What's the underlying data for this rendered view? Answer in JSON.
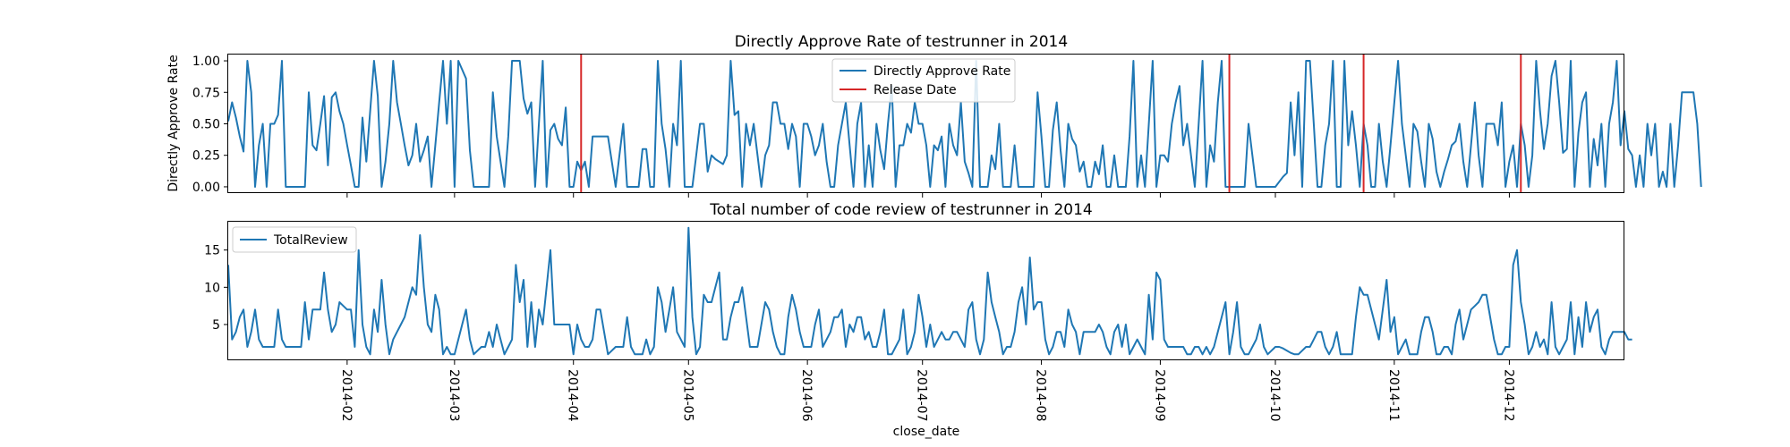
{
  "chart_data": [
    {
      "type": "line",
      "title": "Directly Approve Rate of testrunner in 2014",
      "xlabel": "",
      "ylabel": "Directly Approve Rate",
      "x_range": [
        "2014-01-01",
        "2014-12-31"
      ],
      "ylim": [
        -0.05,
        1.05
      ],
      "yticks": [
        0.0,
        0.25,
        0.5,
        0.75,
        1.0
      ],
      "ytick_labels": [
        "0.00",
        "0.25",
        "0.50",
        "0.75",
        "1.00"
      ],
      "grid": false,
      "legend_position": "top-center",
      "colors": {
        "series": "#1f77b4",
        "release": "#d62728"
      },
      "legend": [
        "Directly Approve Rate",
        "Release Date"
      ],
      "release_dates": [
        "2014-04-03",
        "2014-09-19",
        "2014-10-24",
        "2014-12-04"
      ],
      "series": [
        {
          "name": "Directly Approve Rate",
          "x_start": "2014-01-01",
          "x_step_days": 1,
          "values": [
            0.52,
            0.67,
            0.55,
            0.4,
            0.28,
            1.0,
            0.75,
            0.0,
            0.33,
            0.5,
            0.0,
            0.5,
            0.5,
            0.57,
            1.0,
            0.0,
            0.0,
            0.0,
            0.0,
            0.0,
            0.0,
            0.75,
            0.33,
            0.29,
            0.5,
            0.72,
            0.17,
            0.71,
            0.75,
            0.6,
            0.5,
            0.33,
            0.17,
            0.0,
            0.0,
            0.55,
            0.2,
            0.6,
            1.0,
            0.72,
            0.0,
            0.2,
            0.5,
            1.0,
            0.67,
            0.5,
            0.33,
            0.17,
            0.25,
            0.5,
            0.2,
            0.29,
            0.4,
            0.0,
            0.33,
            0.67,
            1.0,
            0.5,
            1.0,
            0.0,
            1.0,
            0.93,
            0.86,
            0.29,
            0.0,
            0.0,
            0.0,
            0.0,
            0.0,
            0.75,
            0.4,
            0.2,
            0.0,
            0.4,
            1.0,
            1.0,
            1.0,
            0.7,
            0.58,
            0.67,
            0.0,
            0.5,
            1.0,
            0.0,
            0.45,
            0.5,
            0.38,
            0.33,
            0.63,
            0.0,
            0.0,
            0.2,
            0.13,
            0.2,
            0.0,
            0.4,
            0.4,
            0.4,
            0.4,
            0.4,
            0.2,
            0.0,
            0.25,
            0.5,
            0.0,
            0.0,
            0.0,
            0.0,
            0.3,
            0.3,
            0.0,
            0.0,
            1.0,
            0.5,
            0.3,
            0.0,
            0.5,
            0.33,
            1.0,
            0.0,
            0.0,
            0.0,
            0.25,
            0.5,
            0.5,
            0.12,
            0.25,
            0.22,
            0.2,
            0.18,
            0.25,
            1.0,
            0.57,
            0.6,
            0.0,
            0.5,
            0.33,
            0.5,
            0.25,
            0.0,
            0.25,
            0.33,
            0.67,
            0.67,
            0.5,
            0.5,
            0.3,
            0.5,
            0.4,
            0.0,
            0.5,
            0.5,
            0.4,
            0.25,
            0.33,
            0.5,
            0.2,
            0.0,
            0.0,
            0.33,
            0.5,
            0.67,
            0.33,
            0.0,
            0.5,
            0.67,
            0.0,
            0.33,
            0.0,
            0.5,
            0.29,
            0.14,
            0.5,
            0.8,
            0.0,
            0.33,
            0.33,
            0.5,
            0.43,
            0.67,
            0.5,
            0.5,
            0.33,
            0.0,
            0.33,
            0.29,
            0.4,
            0.0,
            0.5,
            0.33,
            0.25,
            0.67,
            0.2,
            0.11,
            0.0,
            1.0,
            0.0,
            0.0,
            0.0,
            0.25,
            0.14,
            0.5,
            0.0,
            0.0,
            0.0,
            0.33,
            0.0,
            0.0,
            0.0,
            0.0,
            0.0,
            0.75,
            0.4,
            0.0,
            0.0,
            0.45,
            0.67,
            0.29,
            0.0,
            0.5,
            0.38,
            0.33,
            0.12,
            0.2,
            0.0,
            0.0,
            0.2,
            0.1,
            0.33,
            0.0,
            0.0,
            0.25,
            0.0,
            0.0,
            0.0,
            0.4,
            1.0,
            0.0,
            0.25,
            0.0,
            0.5,
            1.0,
            0.0,
            0.25,
            0.25,
            0.2,
            0.5,
            0.67,
            0.8,
            0.33,
            0.5,
            0.25,
            0.0,
            0.5,
            1.0,
            0.0,
            0.33,
            0.2,
            0.67,
            1.0,
            0.0,
            0.0,
            0.0,
            0.0,
            0.0,
            0.0,
            0.5,
            0.25,
            0.0,
            0.0,
            0.0,
            0.0,
            0.0,
            0.0,
            0.04,
            0.08,
            0.11,
            0.67,
            0.25,
            0.75,
            0.0,
            1.0,
            1.0,
            0.5,
            0.0,
            0.0,
            0.33,
            0.5,
            1.0,
            0.0,
            0.0,
            1.0,
            0.33,
            0.6,
            0.33,
            0.0,
            0.5,
            0.33,
            0.0,
            0.0,
            0.5,
            0.2,
            0.0,
            0.33,
            0.67,
            1.0,
            0.5,
            0.25,
            0.0,
            0.5,
            0.44,
            0.2,
            0.0,
            0.5,
            0.38,
            0.12,
            0.0,
            0.12,
            0.22,
            0.33,
            0.36,
            0.5,
            0.2,
            0.0,
            0.33,
            0.67,
            0.25,
            0.0,
            0.5,
            0.5,
            0.5,
            0.33,
            0.67,
            0.0,
            0.2,
            0.33,
            0.0,
            0.5,
            0.33,
            0.0,
            0.25,
            1.0,
            0.6,
            0.3,
            0.5,
            0.88,
            1.0,
            0.67,
            0.27,
            0.3,
            1.0,
            0.0,
            0.43,
            0.67,
            0.75,
            0.0,
            0.38,
            0.17,
            0.5,
            0.0,
            0.5,
            0.67,
            1.0,
            0.33,
            0.6,
            0.3,
            0.25,
            0.0,
            0.25,
            0.0,
            0.5,
            0.25,
            0.5,
            0.0,
            0.12,
            0.0,
            0.5,
            0.0,
            0.33,
            0.75,
            0.75,
            0.75,
            0.75,
            0.5,
            0.0
          ]
        }
      ]
    },
    {
      "type": "line",
      "title": "Total number of code review of testrunner in 2014",
      "xlabel": "close_date",
      "ylabel": "",
      "x_range": [
        "2014-01-01",
        "2014-12-31"
      ],
      "ylim": [
        0.2,
        18.8
      ],
      "yticks": [
        5,
        10,
        15
      ],
      "ytick_labels": [
        "5",
        "10",
        "15"
      ],
      "xtick_labels": [
        "2014-02",
        "2014-03",
        "2014-04",
        "2014-05",
        "2014-06",
        "2014-07",
        "2014-08",
        "2014-09",
        "2014-10",
        "2014-11",
        "2014-12"
      ],
      "xtick_dates": [
        "2014-02-01",
        "2014-03-01",
        "2014-04-01",
        "2014-05-01",
        "2014-06-01",
        "2014-07-01",
        "2014-08-01",
        "2014-09-01",
        "2014-10-01",
        "2014-11-01",
        "2014-12-01"
      ],
      "grid": false,
      "legend_position": "top-left",
      "colors": {
        "series": "#1f77b4"
      },
      "legend": [
        "TotalReview"
      ],
      "series": [
        {
          "name": "TotalReview",
          "x_start": "2014-01-01",
          "x_step_days": 1,
          "values": [
            13,
            3,
            4,
            6,
            7,
            2,
            4,
            7,
            3,
            2,
            2,
            2,
            2,
            7,
            3,
            2,
            2,
            2,
            2,
            2,
            8,
            3,
            7,
            7,
            7,
            12,
            7,
            4,
            5,
            8,
            7.5,
            7,
            7,
            2,
            15,
            5,
            2,
            1,
            7,
            4,
            11,
            5,
            1,
            3,
            4,
            5,
            6,
            8,
            10,
            9,
            17,
            10,
            5,
            4,
            9,
            7,
            1,
            2,
            1,
            1,
            3,
            5,
            7,
            3,
            1,
            1.5,
            2,
            2,
            4,
            2,
            5,
            3,
            1,
            2,
            3,
            13,
            8,
            11,
            2,
            8,
            2,
            7,
            5,
            10,
            15,
            5,
            5,
            5,
            5,
            5,
            1,
            5,
            3,
            2,
            2,
            3,
            7,
            7,
            4,
            1,
            1.5,
            2,
            2,
            2,
            6,
            2,
            1,
            1,
            1,
            3,
            1,
            2,
            10,
            8,
            4,
            7,
            10,
            4,
            3,
            2,
            18,
            6,
            1,
            2,
            9,
            8,
            8,
            10,
            12,
            3,
            3,
            6,
            8,
            8,
            10,
            6,
            2,
            2,
            2,
            5,
            8,
            7,
            4,
            2,
            1,
            1,
            6,
            9,
            7,
            4,
            2,
            2,
            2,
            5,
            7,
            2,
            3,
            4,
            6,
            6,
            7,
            2,
            5,
            4,
            6,
            6,
            3,
            4,
            2,
            2,
            4,
            7,
            1,
            1,
            2,
            3,
            7,
            1,
            2,
            4,
            9,
            6,
            2,
            5,
            2,
            3,
            4,
            3,
            3,
            4,
            4,
            3,
            2,
            7,
            8,
            3,
            1,
            3,
            12,
            8,
            6,
            4,
            1,
            2,
            2,
            4,
            8,
            10,
            5,
            14,
            7,
            8,
            8,
            3,
            1,
            2,
            4,
            4,
            2,
            7,
            5,
            4,
            1,
            4,
            4,
            4,
            4,
            5,
            4,
            2,
            1,
            4,
            5,
            2,
            5,
            1,
            2,
            3,
            2,
            1,
            9,
            3,
            12,
            11,
            3,
            2,
            2,
            2,
            2,
            2,
            1,
            1,
            2,
            2,
            1,
            2,
            1,
            2,
            4,
            6,
            8,
            1,
            4,
            8,
            2,
            1,
            1,
            2,
            3,
            5,
            2,
            1,
            1.5,
            2,
            2,
            1.8,
            1.5,
            1.2,
            1,
            1,
            1.5,
            2,
            2,
            3,
            4,
            4,
            2,
            1,
            2,
            4,
            1,
            1,
            1,
            1,
            6,
            10,
            9,
            9,
            7,
            5,
            3,
            7,
            11,
            4,
            6,
            1,
            2,
            3,
            1,
            1,
            1,
            4,
            6,
            6,
            4,
            1,
            1,
            2,
            2,
            1,
            5,
            7,
            3,
            5,
            7,
            7.5,
            8,
            9,
            9,
            6,
            3,
            1,
            1,
            2,
            2,
            13,
            15,
            8,
            5,
            1,
            2,
            4,
            2,
            3,
            1,
            8,
            2,
            1,
            2,
            3,
            8,
            1,
            6,
            2,
            8,
            4,
            6,
            7,
            2,
            1,
            3,
            4,
            4,
            4,
            4,
            3,
            3
          ]
        }
      ]
    }
  ]
}
